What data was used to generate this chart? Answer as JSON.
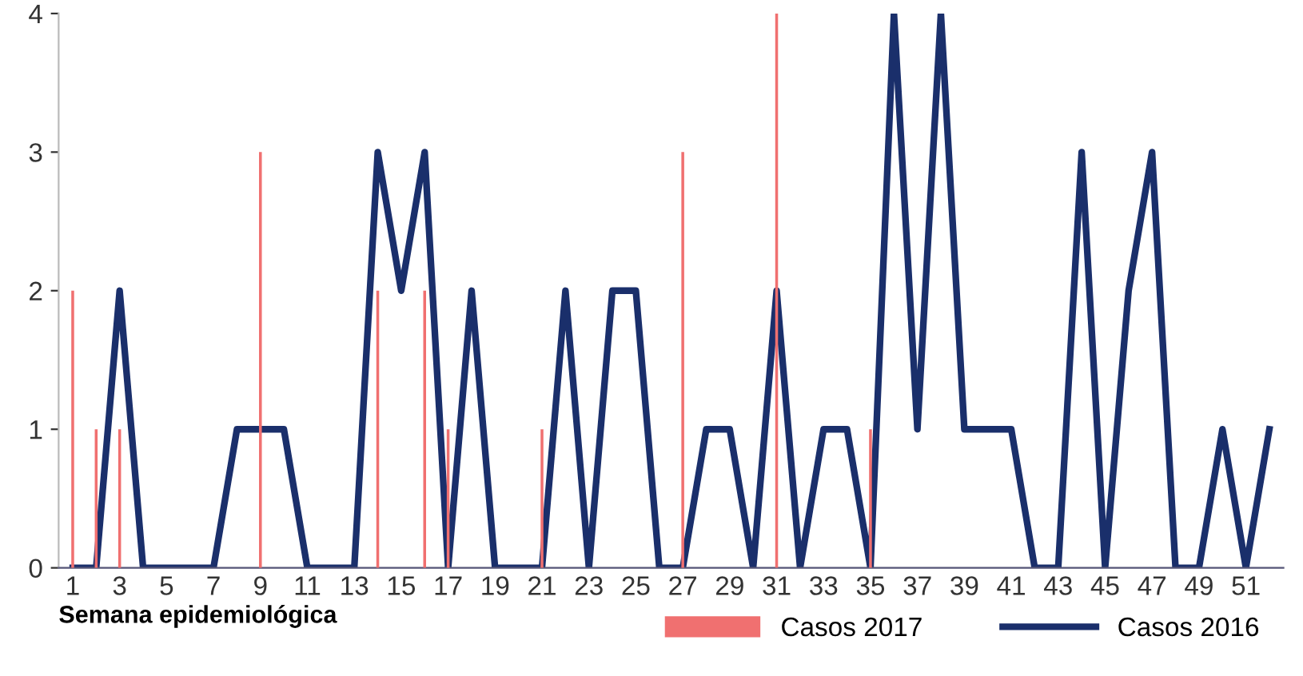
{
  "chart_data": {
    "type": "bar",
    "categories": [
      "1",
      null,
      "3",
      null,
      "5",
      null,
      "7",
      null,
      "9",
      null,
      "11",
      null,
      "13",
      null,
      "15",
      null,
      "17",
      null,
      "19",
      null,
      "21",
      null,
      "23",
      null,
      "25",
      null,
      "27",
      null,
      "29",
      null,
      "31",
      null,
      "33",
      null,
      "35",
      null,
      "37",
      null,
      "39",
      null,
      "41",
      null,
      "43",
      null,
      "45",
      null,
      "47",
      null,
      "49",
      null,
      "51",
      null
    ],
    "xlabel": "Semana epidemiológica",
    "series": [
      {
        "name": "Casos 2017",
        "color": "#f07070",
        "values": [
          2,
          1,
          1,
          0,
          0,
          0,
          0,
          0,
          3,
          0,
          0,
          0,
          0,
          2,
          0,
          2,
          1,
          null,
          0,
          0,
          1,
          null,
          0,
          0,
          0,
          0,
          3,
          null,
          0,
          0,
          4,
          0,
          0,
          0,
          1,
          0,
          0,
          0,
          0,
          0,
          0,
          0,
          0,
          0,
          0,
          0,
          0,
          0,
          0,
          0,
          0,
          0
        ]
      },
      {
        "name": "Casos 2016",
        "type": "line",
        "color": "#1a2f6b",
        "values": [
          0,
          0,
          2,
          0,
          0,
          0,
          0,
          1,
          1,
          1,
          0,
          0,
          0,
          3,
          2,
          3,
          0,
          2,
          0,
          0,
          0,
          2,
          0,
          2,
          2,
          0,
          0,
          1,
          1,
          0,
          2,
          0,
          1,
          1,
          0,
          4,
          1,
          4,
          1,
          1,
          1,
          0,
          0,
          3,
          0,
          2,
          3,
          0,
          0,
          1,
          0,
          1
        ]
      }
    ],
    "ylim": [
      0,
      4
    ],
    "yticks": [
      0,
      1,
      2,
      3,
      4
    ],
    "grid": false,
    "legend": "bottom right",
    "line_style": "solid"
  }
}
